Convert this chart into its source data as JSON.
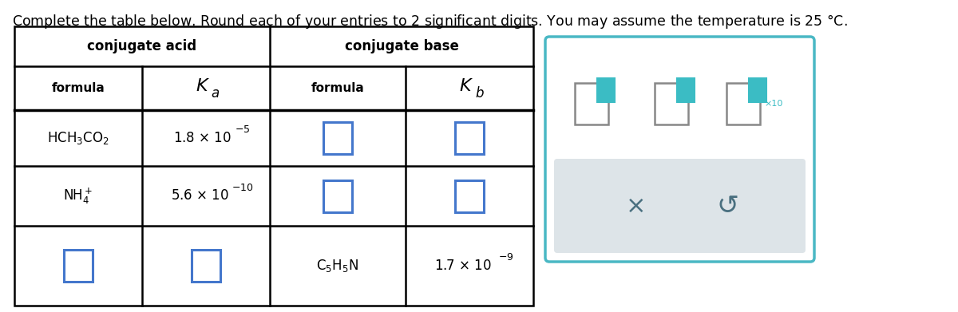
{
  "title": "Complete the table below. Round each of your entries to 2 significant digits. You may assume the temperature is 25 °C.",
  "title_fontsize": 12.5,
  "background_color": "#ffffff",
  "col_acid_header": "conjugate acid",
  "col_base_header": "conjugate base",
  "input_box_color": "#4477cc",
  "widget_border_color": "#4ab8c4",
  "widget_bottom_bg": "#dde4e8",
  "icon_large_color": "#888888",
  "icon_small_color": "#3bbcc4",
  "x_color": "#4a7080",
  "undo_color": "#4a7080"
}
